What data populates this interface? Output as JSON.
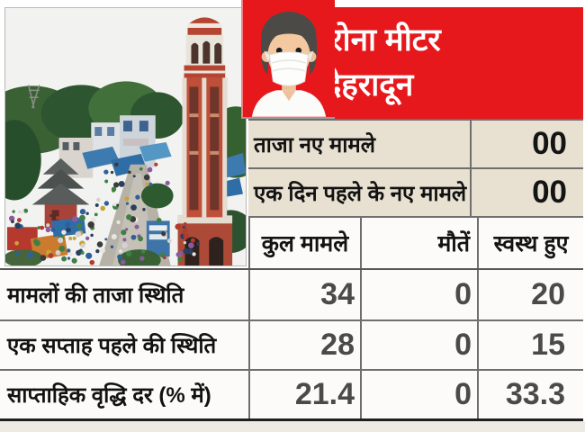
{
  "header": {
    "title_line1": "कोरोना मीटर",
    "title_line2": "देहरादून"
  },
  "summary_rows": [
    {
      "label": "ताजा नए मामले",
      "value": "00"
    },
    {
      "label": "एक दिन पहले के नए मामले",
      "value": "00"
    }
  ],
  "table": {
    "columns": [
      "कुल मामले",
      "मौतें",
      "स्वस्थ हुए"
    ],
    "rows": [
      {
        "label": "मामलों की ताजा स्थिति",
        "values": [
          "34",
          "0",
          "20"
        ]
      },
      {
        "label": "एक सप्ताह पहले की स्थिति",
        "values": [
          "28",
          "0",
          "15"
        ]
      },
      {
        "label": "साप्ताहिक वृद्धि दर (% में)",
        "values": [
          "21.4",
          "0",
          "33.3"
        ]
      }
    ]
  },
  "icons": {
    "person": "masked-person-icon",
    "photo": "city-photo"
  },
  "colors": {
    "header_red": "#e7181c",
    "summary_row_beige": "#e8e1d2",
    "border_gray": "#6f6f6f",
    "number_gray": "#4a4a4a",
    "tower_brick": "#bf4f38"
  },
  "chart_data": {
    "type": "table",
    "title": "कोरोना मीटर देहरादून",
    "summary": [
      {
        "label": "ताजा नए मामले",
        "value": 0
      },
      {
        "label": "एक दिन पहले के नए मामले",
        "value": 0
      }
    ],
    "columns": [
      "कुल मामले",
      "मौतें",
      "स्वस्थ हुए"
    ],
    "rows": [
      {
        "label": "मामलों की ताजा स्थिति",
        "values": [
          34,
          0,
          20
        ]
      },
      {
        "label": "एक सप्ताह पहले की स्थिति",
        "values": [
          28,
          0,
          15
        ]
      },
      {
        "label": "साप्ताहिक वृद्धि दर (% में)",
        "values": [
          21.4,
          0,
          33.3
        ]
      }
    ]
  }
}
